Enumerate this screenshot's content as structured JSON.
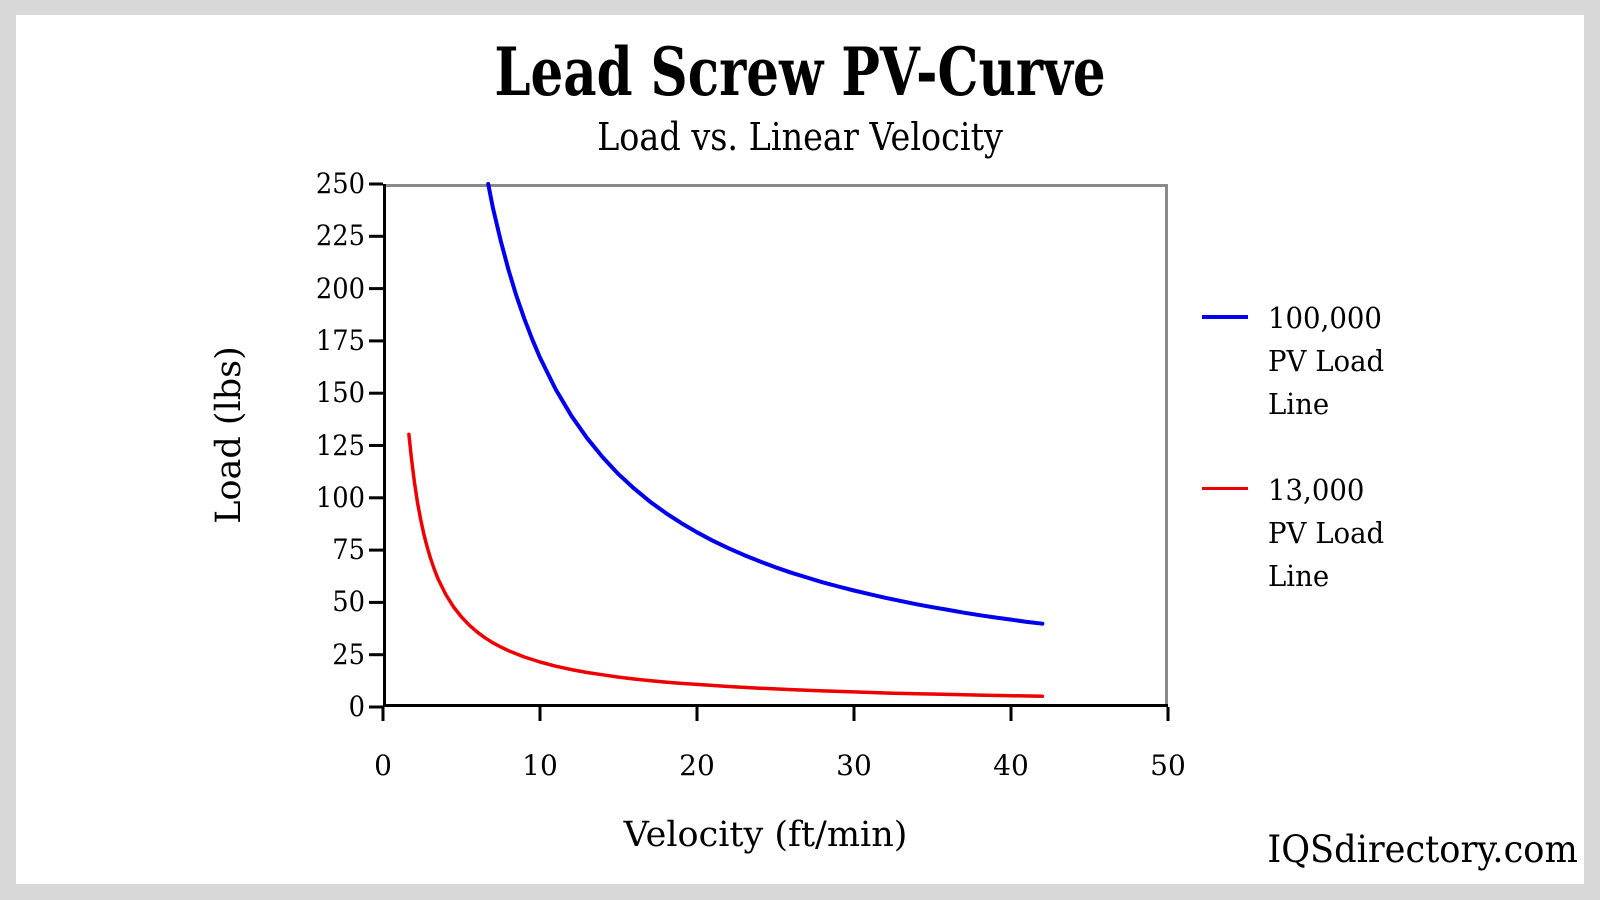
{
  "page": {
    "watermark": "IQSdirectory.com",
    "background_color": "#d8d8d8",
    "panel_color": "#ffffff"
  },
  "chart_data": {
    "type": "line",
    "title": "Lead Screw PV-Curve",
    "subtitle": "Load vs. Linear Velocity",
    "xlabel": "Velocity (ft/min)",
    "ylabel": "Load (lbs)",
    "xlim": [
      0,
      50
    ],
    "ylim": [
      0,
      250
    ],
    "x_ticks": [
      0,
      10,
      20,
      30,
      40,
      50
    ],
    "y_ticks": [
      0,
      25,
      50,
      75,
      100,
      125,
      150,
      175,
      200,
      225,
      250
    ],
    "grid": false,
    "legend_position": "right",
    "frame_color": "#8a8a8a",
    "axis_color": "#000000",
    "series": [
      {
        "name": "100,000 PV Load Line",
        "pv_rating": "100,000",
        "color": "#0000ee",
        "stroke_width": 4,
        "points": [
          [
            6.7,
            250
          ],
          [
            7,
            238.6
          ],
          [
            7.5,
            222.7
          ],
          [
            8,
            208.8
          ],
          [
            8.5,
            196.5
          ],
          [
            9,
            185.6
          ],
          [
            9.5,
            175.8
          ],
          [
            10,
            167
          ],
          [
            11,
            151.8
          ],
          [
            12,
            139.2
          ],
          [
            13,
            128.5
          ],
          [
            14,
            119.3
          ],
          [
            15,
            111.3
          ],
          [
            16,
            104.4
          ],
          [
            17,
            98.2
          ],
          [
            18,
            92.8
          ],
          [
            19,
            87.9
          ],
          [
            20,
            83.5
          ],
          [
            21,
            79.5
          ],
          [
            22,
            75.9
          ],
          [
            23,
            72.6
          ],
          [
            24,
            69.6
          ],
          [
            25,
            66.8
          ],
          [
            26,
            64.2
          ],
          [
            27,
            61.9
          ],
          [
            28,
            59.6
          ],
          [
            29,
            57.6
          ],
          [
            30,
            55.7
          ],
          [
            31,
            53.9
          ],
          [
            32,
            52.2
          ],
          [
            33,
            50.6
          ],
          [
            34,
            49.1
          ],
          [
            35,
            47.7
          ],
          [
            36,
            46.4
          ],
          [
            37,
            45.1
          ],
          [
            38,
            43.9
          ],
          [
            39,
            42.8
          ],
          [
            40,
            41.8
          ],
          [
            41,
            40.7
          ],
          [
            42,
            39.8
          ]
        ]
      },
      {
        "name": "13,000 PV Load Line",
        "pv_rating": "13,000",
        "color": "#ee0000",
        "stroke_width": 3.5,
        "points": [
          [
            1.65,
            130.3
          ],
          [
            1.8,
            119.4
          ],
          [
            2,
            107.5
          ],
          [
            2.2,
            97.7
          ],
          [
            2.4,
            89.6
          ],
          [
            2.6,
            82.7
          ],
          [
            2.8,
            76.8
          ],
          [
            3,
            71.7
          ],
          [
            3.25,
            66.2
          ],
          [
            3.5,
            61.4
          ],
          [
            4,
            53.8
          ],
          [
            4.5,
            47.8
          ],
          [
            5,
            43
          ],
          [
            5.5,
            39.1
          ],
          [
            6,
            35.8
          ],
          [
            6.5,
            33.1
          ],
          [
            7,
            30.7
          ],
          [
            7.5,
            28.7
          ],
          [
            8,
            26.9
          ],
          [
            9,
            23.9
          ],
          [
            10,
            21.5
          ],
          [
            11,
            19.5
          ],
          [
            12,
            17.9
          ],
          [
            13,
            16.5
          ],
          [
            14,
            15.4
          ],
          [
            15,
            14.3
          ],
          [
            16,
            13.4
          ],
          [
            17,
            12.6
          ],
          [
            18,
            11.9
          ],
          [
            19,
            11.3
          ],
          [
            20,
            10.8
          ],
          [
            22,
            9.8
          ],
          [
            24,
            9.0
          ],
          [
            26,
            8.3
          ],
          [
            28,
            7.7
          ],
          [
            30,
            7.2
          ],
          [
            32,
            6.7
          ],
          [
            34,
            6.3
          ],
          [
            36,
            6.0
          ],
          [
            38,
            5.7
          ],
          [
            40,
            5.4
          ],
          [
            42,
            5.1
          ]
        ]
      }
    ]
  },
  "legend": {
    "items": [
      {
        "color": "#0000ee",
        "lines": [
          "100,000",
          "PV Load",
          "Line"
        ]
      },
      {
        "color": "#ee0000",
        "lines": [
          "13,000",
          "PV Load",
          "Line"
        ]
      }
    ]
  }
}
